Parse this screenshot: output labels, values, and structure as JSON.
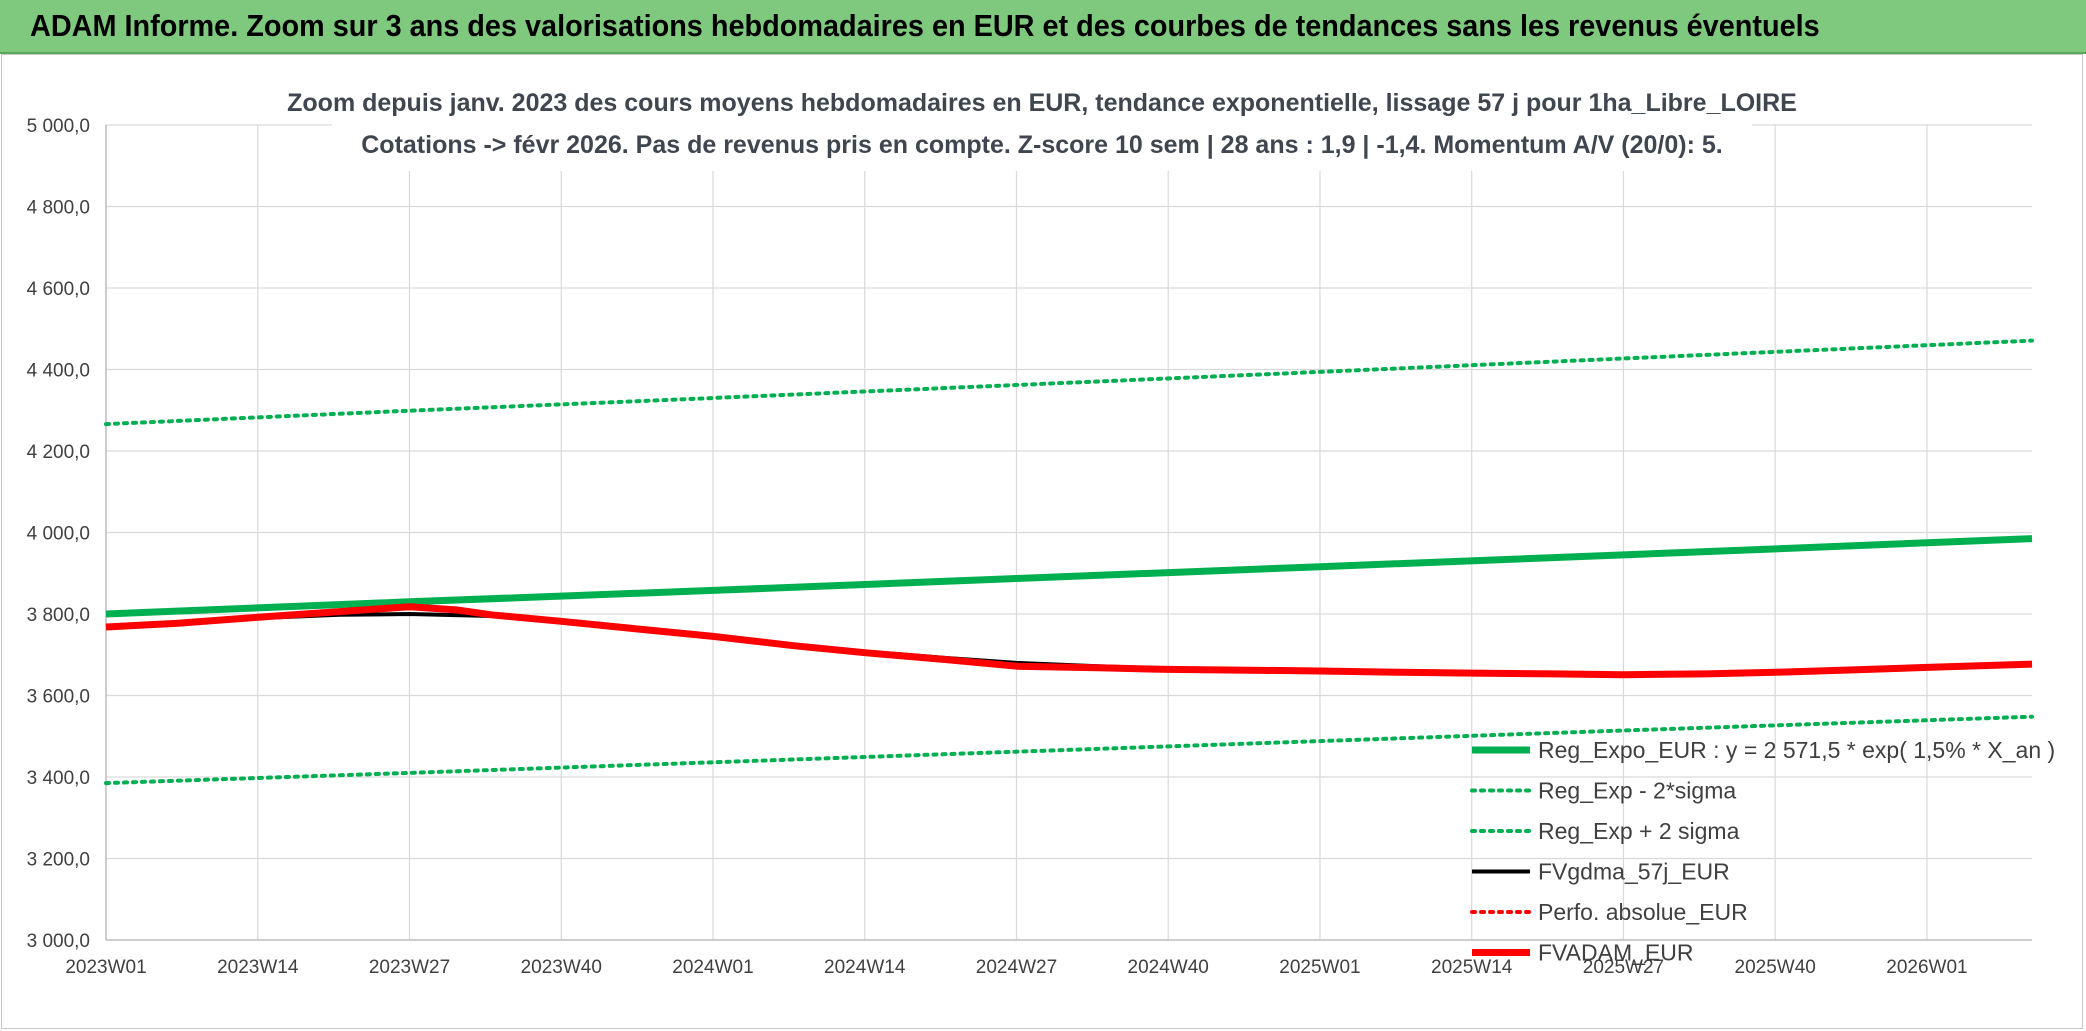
{
  "banner": {
    "title": "ADAM Informe. Zoom sur 3 ans des valorisations hebdomadaires en EUR et des courbes de tendances sans les revenus éventuels"
  },
  "colors": {
    "banner_bg": "#7fc97f",
    "reg_expo": "#00b050",
    "reg_band": "#00b050",
    "fvgdma": "#000000",
    "perfo": "#ff0000",
    "fvadam": "#ff0000"
  },
  "chart_data": {
    "type": "line",
    "title_line1": "Zoom depuis janv. 2023 des cours moyens hebdomadaires en EUR, tendance exponentielle, lissage 57 j pour 1ha_Libre_LOIRE",
    "title_line2": "Cotations -> févr 2026. Pas de revenus pris en compte. Z-score 10 sem | 28 ans : 1,9 | -1,4. Momentum A/V (20/0): 5.",
    "xlabel": "",
    "ylabel": "",
    "ylim": [
      3000,
      5000
    ],
    "y_ticks": [
      3000,
      3200,
      3400,
      3600,
      3800,
      4000,
      4200,
      4400,
      4600,
      4800,
      5000
    ],
    "y_tick_labels": [
      "3 000,0",
      "3 200,0",
      "3 400,0",
      "3 600,0",
      "3 800,0",
      "4 000,0",
      "4 200,0",
      "4 400,0",
      "4 600,0",
      "4 800,0",
      "5 000,0"
    ],
    "x_range": [
      0,
      165
    ],
    "x_tick_positions": [
      0,
      13,
      26,
      39,
      52,
      65,
      78,
      91,
      104,
      117,
      130,
      143,
      156
    ],
    "x_tick_labels": [
      "2023W01",
      "2023W14",
      "2023W27",
      "2023W40",
      "2024W01",
      "2024W14",
      "2024W27",
      "2024W40",
      "2025W01",
      "2025W14",
      "2025W27",
      "2025W40",
      "2026W01"
    ],
    "grid": true,
    "legend_position": "bottom-right",
    "series": [
      {
        "name": "Reg_Expo_EUR : y = 2 571,5 * exp( 1,5% *  X_an )",
        "style": "solid-thick",
        "color": "#00b050",
        "x": [
          0,
          26,
          52,
          78,
          104,
          130,
          165
        ],
        "y": [
          3800,
          3830,
          3858,
          3887,
          3916,
          3945,
          3985
        ]
      },
      {
        "name": "Reg_Exp - 2*sigma",
        "style": "dotted",
        "color": "#00b050",
        "x": [
          0,
          26,
          52,
          78,
          104,
          130,
          165
        ],
        "y": [
          3385,
          3410,
          3436,
          3462,
          3488,
          3514,
          3548
        ]
      },
      {
        "name": "Reg_Exp + 2 sigma",
        "style": "dotted",
        "color": "#00b050",
        "x": [
          0,
          26,
          52,
          78,
          104,
          130,
          165
        ],
        "y": [
          4266,
          4299,
          4330,
          4362,
          4394,
          4427,
          4471
        ]
      },
      {
        "name": "FVgdma_57j_EUR",
        "style": "solid",
        "color": "#000000",
        "x": [
          0,
          6,
          13,
          20,
          26,
          33,
          39,
          46,
          52,
          59,
          65,
          72,
          78,
          85,
          91,
          98,
          104,
          111,
          117,
          124,
          130,
          137,
          143,
          150,
          156,
          165
        ],
        "y": [
          3768,
          3778,
          3790,
          3798,
          3800,
          3795,
          3780,
          3762,
          3745,
          3725,
          3708,
          3692,
          3680,
          3672,
          3666,
          3662,
          3660,
          3658,
          3656,
          3654,
          3652,
          3654,
          3658,
          3664,
          3670,
          3678
        ]
      },
      {
        "name": "Perfo. absolue_EUR",
        "style": "dotted",
        "color": "#ff0000",
        "x": [],
        "y": []
      },
      {
        "name": "FVADAM_EUR",
        "style": "solid-thick",
        "color": "#ff0000",
        "x": [
          0,
          6,
          13,
          20,
          26,
          30,
          33,
          39,
          46,
          52,
          59,
          65,
          72,
          78,
          85,
          91,
          98,
          104,
          111,
          117,
          124,
          130,
          137,
          143,
          150,
          156,
          165
        ],
        "y": [
          3768,
          3777,
          3792,
          3806,
          3818,
          3810,
          3798,
          3782,
          3762,
          3745,
          3722,
          3705,
          3688,
          3672,
          3668,
          3664,
          3662,
          3660,
          3657,
          3655,
          3653,
          3651,
          3653,
          3657,
          3663,
          3669,
          3677
        ]
      }
    ]
  }
}
